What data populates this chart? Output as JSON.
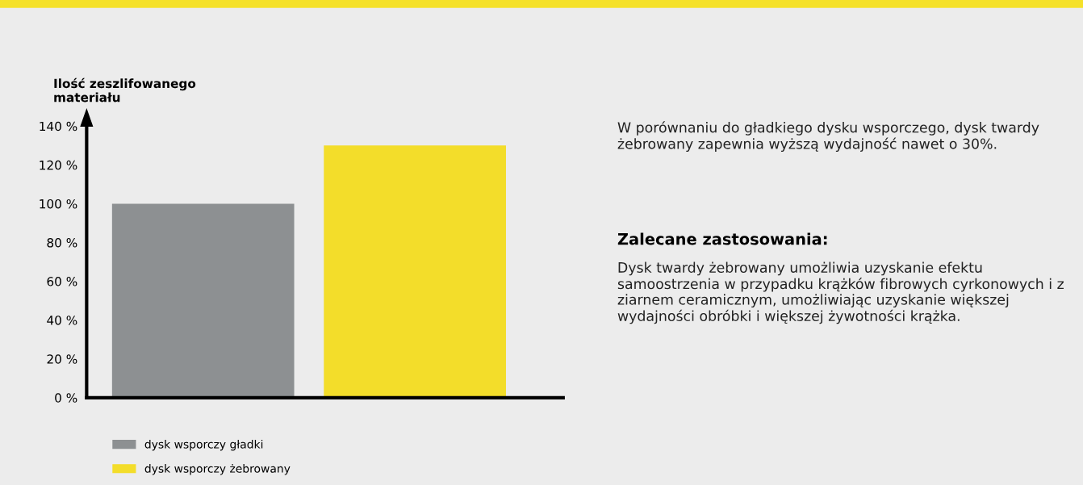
{
  "chart_data": {
    "type": "bar",
    "ylabel": "Ilość zeszlifowanego\nmateriału",
    "categories": [
      null,
      null
    ],
    "series": [
      {
        "name": "dysk wsporczy gładki",
        "color": "#8d9092",
        "values": [
          100,
          null
        ]
      },
      {
        "name": "dysk wsporczy żebrowany",
        "color": "#f3dd2a",
        "values": [
          null,
          130
        ]
      }
    ],
    "ylim": [
      0,
      140
    ],
    "yticks": [
      {
        "value": 0,
        "label": "0 %"
      },
      {
        "value": 20,
        "label": "20 %"
      },
      {
        "value": 40,
        "label": "40 %"
      },
      {
        "value": 60,
        "label": "60 %"
      },
      {
        "value": 80,
        "label": "80 %"
      },
      {
        "value": 100,
        "label": "100 %"
      },
      {
        "value": 120,
        "label": "120 %"
      },
      {
        "value": 140,
        "label": "140 %"
      }
    ],
    "grid": false,
    "legend": "bottom left",
    "annotations": [
      "W porównaniu do gładkiego dysku wsporczego, dysk twardy żebrowany zapewnia wyższą wydajność nawet o 30%.",
      "Zalecane zastosowania:",
      "Dysk twardy żebrowany umożliwia uzyskanie efektu samoostrzenia w przypadku krążków fibrowych cyrkonowych i z ziarnem ceramicznym, umożliwiając uzyskanie większej wydajności obróbki i większej żywotności krążka."
    ]
  }
}
